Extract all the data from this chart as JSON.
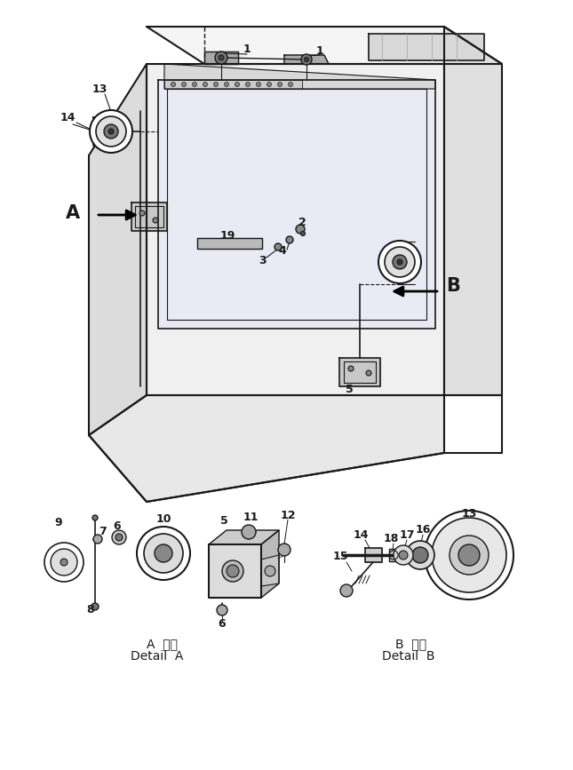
{
  "bg_color": "#ffffff",
  "line_color": "#1a1a1a",
  "fig_width": 6.45,
  "fig_height": 8.67,
  "dpi": 100,
  "detail_A_jp": "A  詳細",
  "detail_A_en": "Detail  A",
  "detail_B_jp": "B  詳細",
  "detail_B_en": "Detail  B"
}
